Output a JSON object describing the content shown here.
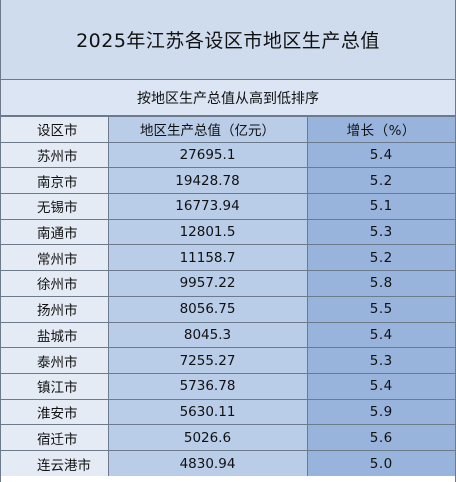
{
  "title": "2025年江苏各设区市地区生产总值",
  "subtitle": "按地区生产总值从高到低排序",
  "columns": [
    "设区市",
    "地区生产总值（亿元）",
    "增长（%）"
  ],
  "rows": [
    {
      "city": "苏州市",
      "gdp": "27695.1",
      "growth": "5.4"
    },
    {
      "city": "南京市",
      "gdp": "19428.78",
      "growth": "5.2"
    },
    {
      "city": "无锡市",
      "gdp": "16773.94",
      "growth": "5.1"
    },
    {
      "city": "南通市",
      "gdp": "12801.5",
      "growth": "5.3"
    },
    {
      "city": "常州市",
      "gdp": "11158.7",
      "growth": "5.2"
    },
    {
      "city": "徐州市",
      "gdp": "9957.22",
      "growth": "5.8"
    },
    {
      "city": "扬州市",
      "gdp": "8056.75",
      "growth": "5.5"
    },
    {
      "city": "盐城市",
      "gdp": "8045.3",
      "growth": "5.4"
    },
    {
      "city": "泰州市",
      "gdp": "7255.27",
      "growth": "5.3"
    },
    {
      "city": "镇江市",
      "gdp": "5736.78",
      "growth": "5.4"
    },
    {
      "city": "淮安市",
      "gdp": "5630.11",
      "growth": "5.9"
    },
    {
      "city": "宿迁市",
      "gdp": "5026.6",
      "growth": "5.6"
    },
    {
      "city": "连云港市",
      "gdp": "4830.94",
      "growth": "5.0"
    }
  ]
}
